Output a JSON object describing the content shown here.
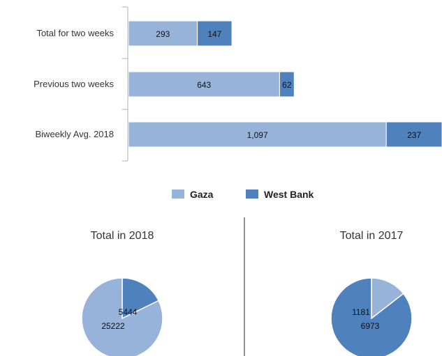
{
  "colors": {
    "gaza": "#97b3d9",
    "west_bank": "#4f81bd",
    "axis": "#b0b0b0"
  },
  "legend": [
    {
      "name": "Gaza",
      "color": "#97b3d9"
    },
    {
      "name": "West Bank",
      "color": "#4f81bd"
    }
  ],
  "chart_data": [
    {
      "type": "bar",
      "orientation": "horizontal",
      "stacked": true,
      "categories": [
        "Total for two weeks",
        "Previous two weeks",
        "Biweekly Avg. 2018"
      ],
      "series": [
        {
          "name": "Gaza",
          "values": [
            293,
            643,
            1097
          ],
          "labels": [
            "293",
            "643",
            "1,097"
          ]
        },
        {
          "name": "West Bank",
          "values": [
            147,
            62,
            237
          ],
          "labels": [
            "147",
            "62",
            "237"
          ]
        }
      ],
      "legend_position": "bottom",
      "grid": false
    },
    {
      "type": "pie",
      "title": "Total in 2018",
      "slices": [
        {
          "name": "West Bank",
          "value": 5444,
          "label": "5444"
        },
        {
          "name": "Gaza",
          "value": 25222,
          "label": "25222"
        }
      ]
    },
    {
      "type": "pie",
      "title": "Total in 2017",
      "slices": [
        {
          "name": "Gaza",
          "value": 1181,
          "label": "1181"
        },
        {
          "name": "West Bank",
          "value": 6973,
          "label": "6973"
        }
      ]
    }
  ]
}
